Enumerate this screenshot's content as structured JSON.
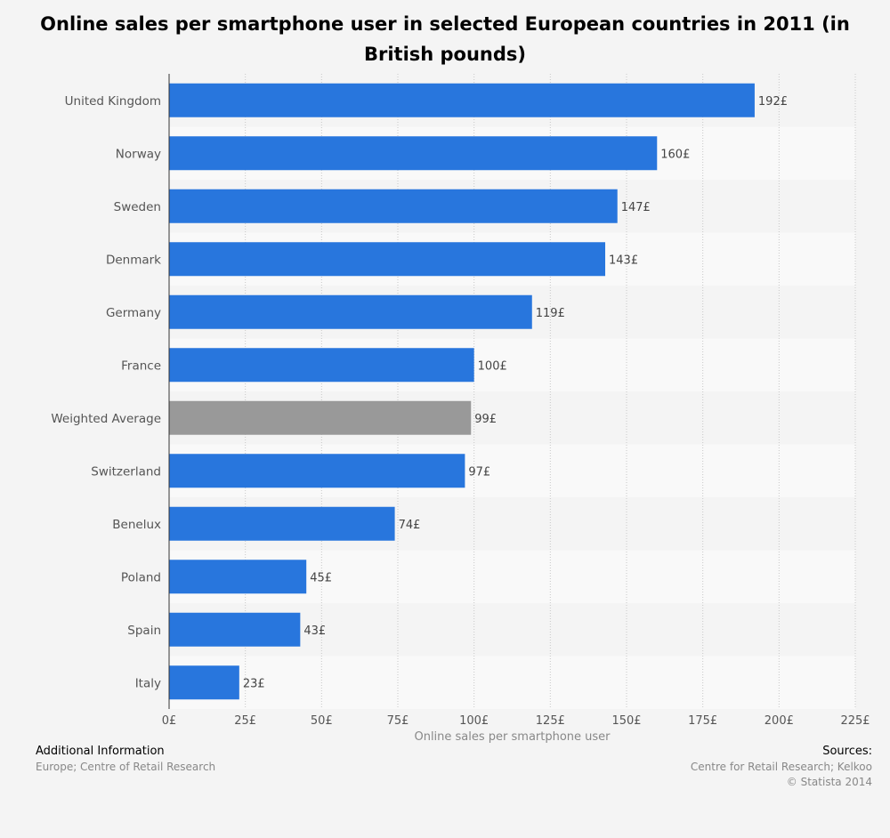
{
  "chart_data": {
    "type": "bar",
    "orientation": "horizontal",
    "title": "Online sales per smartphone user in selected European countries in 2011 (in British pounds)",
    "xlabel": "Online sales per smartphone user",
    "ylabel": "",
    "xlim": [
      0,
      225
    ],
    "tick_values": [
      0,
      25,
      50,
      75,
      100,
      125,
      150,
      175,
      200,
      225
    ],
    "tick_labels": [
      "0£",
      "25£",
      "50£",
      "75£",
      "100£",
      "125£",
      "150£",
      "175£",
      "200£",
      "225£"
    ],
    "categories": [
      "United Kingdom",
      "Norway",
      "Sweden",
      "Denmark",
      "Germany",
      "France",
      "Weighted Average",
      "Switzerland",
      "Benelux",
      "Poland",
      "Spain",
      "Italy"
    ],
    "values": [
      192,
      160,
      147,
      143,
      119,
      100,
      99,
      97,
      74,
      45,
      43,
      23
    ],
    "value_labels": [
      "192£",
      "160£",
      "147£",
      "143£",
      "119£",
      "100£",
      "99£",
      "97£",
      "74£",
      "45£",
      "43£",
      "23£"
    ],
    "bar_colors": [
      "#2876dd",
      "#2876dd",
      "#2876dd",
      "#2876dd",
      "#2876dd",
      "#2876dd",
      "#999999",
      "#2876dd",
      "#2876dd",
      "#2876dd",
      "#2876dd",
      "#2876dd"
    ],
    "grid": true,
    "legend": "none"
  },
  "footer": {
    "left_heading": "Additional Information",
    "left_text": "Europe; Centre of Retail Research",
    "right_heading": "Sources:",
    "right_line1": "Centre for Retail Research; Kelkoo",
    "right_line2": "© Statista 2014"
  }
}
